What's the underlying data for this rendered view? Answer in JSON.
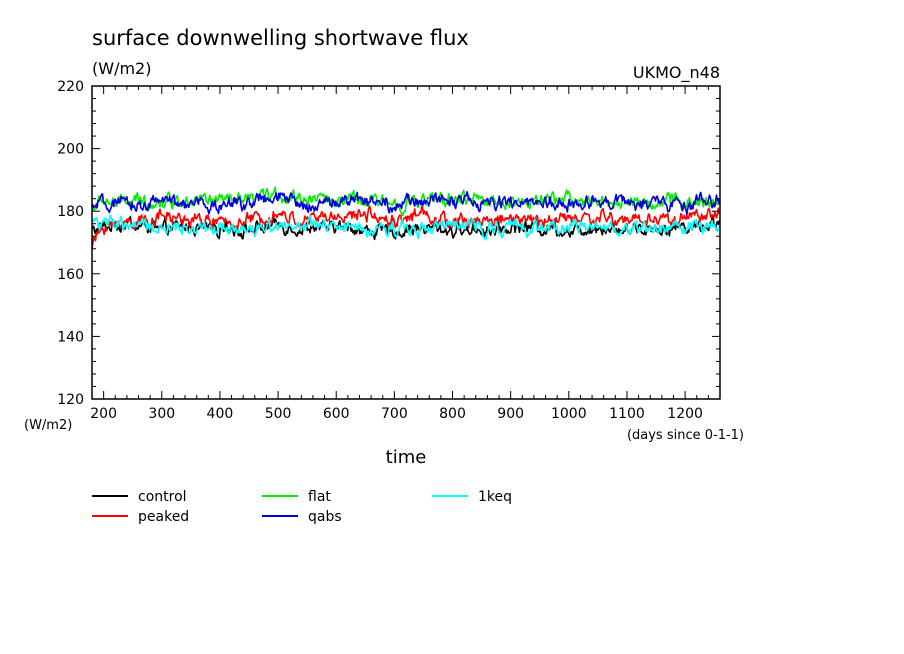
{
  "chart_data": {
    "type": "line",
    "title": "surface downwelling shortwave flux",
    "subtitle": "(W/m2)",
    "model_label": "UKMO_n48",
    "ylabel": "(W/m2)",
    "xlabel": "time",
    "xunits": "(days since 0-1-1)",
    "xlim": [
      180,
      1260
    ],
    "ylim": [
      120,
      220
    ],
    "xticks": [
      200,
      300,
      400,
      500,
      600,
      700,
      800,
      900,
      1000,
      1100,
      1200
    ],
    "yticks": [
      120,
      140,
      160,
      180,
      200,
      220
    ],
    "grid": false,
    "legend_position": "below-left",
    "series": [
      {
        "name": "control",
        "color": "#000000",
        "x": [
          180,
          200,
          250,
          300,
          350,
          400,
          450,
          500,
          550,
          600,
          650,
          700,
          750,
          800,
          850,
          900,
          950,
          1000,
          1050,
          1100,
          1150,
          1200,
          1260
        ],
        "values": [
          174,
          175,
          176,
          174,
          175,
          175,
          174,
          175,
          174,
          175,
          174,
          173,
          175,
          174,
          174,
          175,
          175,
          174,
          175,
          174,
          175,
          175,
          176
        ]
      },
      {
        "name": "peaked",
        "color": "#ff0000",
        "x": [
          180,
          200,
          250,
          300,
          350,
          400,
          450,
          500,
          550,
          600,
          650,
          700,
          750,
          800,
          850,
          900,
          950,
          1000,
          1050,
          1100,
          1150,
          1200,
          1260
        ],
        "values": [
          169,
          175,
          177,
          178,
          177,
          176,
          177,
          178,
          177,
          178,
          179,
          177,
          179,
          176,
          177,
          178,
          177,
          178,
          178,
          177,
          177,
          178,
          179
        ]
      },
      {
        "name": "flat",
        "color": "#00ee00",
        "x": [
          180,
          200,
          250,
          300,
          350,
          400,
          450,
          500,
          550,
          600,
          650,
          700,
          750,
          800,
          850,
          900,
          950,
          1000,
          1050,
          1100,
          1150,
          1200,
          1260
        ],
        "values": [
          181,
          183,
          183,
          183,
          184,
          183,
          183,
          185,
          184,
          184,
          183,
          183,
          183,
          184,
          184,
          183,
          183,
          184,
          183,
          183,
          183,
          183,
          183
        ]
      },
      {
        "name": "qabs",
        "color": "#0000dd",
        "x": [
          180,
          200,
          250,
          300,
          350,
          400,
          450,
          500,
          550,
          600,
          650,
          700,
          750,
          800,
          850,
          900,
          950,
          1000,
          1050,
          1100,
          1150,
          1200,
          1260
        ],
        "values": [
          181,
          182,
          182,
          183,
          182,
          182,
          183,
          184,
          182,
          183,
          184,
          182,
          183,
          184,
          182,
          183,
          183,
          182,
          184,
          183,
          182,
          182,
          184
        ]
      },
      {
        "name": "1keq",
        "color": "#00ffff",
        "x": [
          180,
          200,
          250,
          300,
          350,
          400,
          450,
          500,
          550,
          600,
          650,
          700,
          750,
          800,
          850,
          900,
          950,
          1000,
          1050,
          1100,
          1150,
          1200,
          1260
        ],
        "values": [
          178,
          176,
          175,
          174,
          175,
          175,
          174,
          176,
          175,
          175,
          174,
          175,
          175,
          175,
          175,
          175,
          174,
          175,
          175,
          174,
          175,
          175,
          175
        ]
      }
    ]
  }
}
